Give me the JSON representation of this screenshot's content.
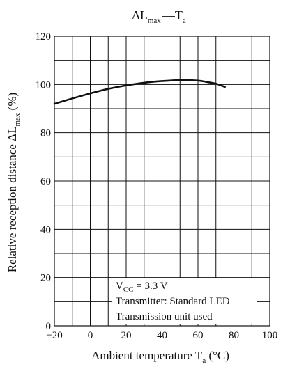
{
  "chart_data": {
    "type": "line",
    "title": {
      "delta": "ΔL",
      "sub": "max",
      "dash": "—",
      "var": "T",
      "var_sub": "a"
    },
    "xlabel": {
      "text": "Ambient temperature  T",
      "sub": "a",
      "unit": "  (°C)"
    },
    "ylabel": {
      "text": "Relative reception distance  ΔL",
      "sub": "max",
      "unit": "  (%)"
    },
    "xlim": [
      -20,
      100
    ],
    "ylim": [
      0,
      120
    ],
    "x_ticks": [
      -20,
      0,
      20,
      40,
      60,
      80,
      100
    ],
    "y_ticks": [
      0,
      20,
      40,
      60,
      80,
      100,
      120
    ],
    "x_grid_step": 10,
    "y_grid_step": 10,
    "grid": true,
    "series": [
      {
        "x": [
          -20,
          -10,
          0,
          10,
          20,
          30,
          40,
          50,
          60,
          65,
          70,
          75
        ],
        "y": [
          92,
          94.2,
          96.3,
          98.2,
          99.6,
          100.7,
          101.4,
          101.8,
          101.6,
          101,
          100.3,
          99
        ]
      }
    ],
    "annotations": {
      "vcc": {
        "pre": "V",
        "sub": "CC",
        "post": " = 3.3 V"
      },
      "line2": "Transmitter: Standard LED",
      "line3": "Transmission unit used"
    }
  },
  "style": {
    "line_color": "#111111",
    "grid_color": "#111111"
  }
}
